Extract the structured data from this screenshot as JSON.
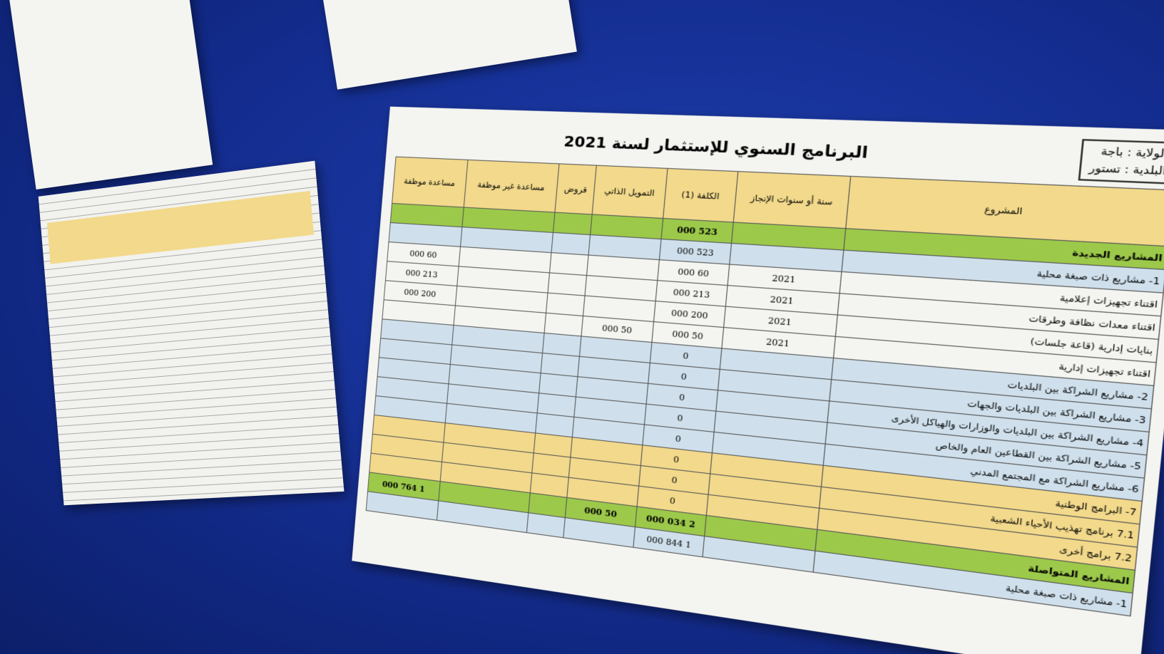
{
  "header": {
    "governorate": "الولاية : باجة",
    "municipality": "البلدية : تستور",
    "title": "البرنامج السنوي للإستثمار لسنة 2021"
  },
  "table": {
    "columns": [
      "المشروع",
      "سنة أو سنوات الإنجاز",
      "الكلفة (1)",
      "التمويل الذاتي",
      "قروض",
      "مساعدة غير موظفة",
      "مساعدة موظفة"
    ],
    "rows": [
      {
        "label": "المشاريع الجديدة",
        "cost": "523 000"
      },
      {
        "label": "1- مشاريع ذات صبغة محلية",
        "cost": "523 000"
      },
      {
        "label": "اقتناء تجهيزات إعلامية",
        "year": "2021",
        "cost": "60 000",
        "assigned_grant": "60 000"
      },
      {
        "label": "اقتناء معدات نظافة وطرقات",
        "year": "2021",
        "cost": "213 000",
        "assigned_grant": "213 000"
      },
      {
        "label": "بنايات إدارية (قاعة جلسات)",
        "year": "2021",
        "cost": "200 000",
        "assigned_grant": "200 000"
      },
      {
        "label": "اقتناء تجهيزات إدارية",
        "year": "2021",
        "cost": "50 000",
        "self_funding": "50 000"
      },
      {
        "label": "2- مشاريع الشراكة بين البلديات",
        "cost": "0"
      },
      {
        "label": "3- مشاريع الشراكة بين البلديات والجهات",
        "cost": "0"
      },
      {
        "label": "4- مشاريع الشراكة بين البلديات والوزارات والهياكل الأخرى",
        "cost": "0"
      },
      {
        "label": "5- مشاريع الشراكة بين القطاعين العام والخاص",
        "cost": "0"
      },
      {
        "label": "6- مشاريع الشراكة مع المجتمع المدني",
        "cost": "0"
      },
      {
        "label": "7- البرامج الوطنية",
        "cost": "0"
      },
      {
        "label": "7.1 برنامج تهذيب الأحياء الشعبية",
        "cost": "0"
      },
      {
        "label": "7.2 برامج أخرى",
        "cost": "0"
      },
      {
        "label": "المشاريع المتواصلة",
        "cost": "2 034 000",
        "self_funding": "50 000",
        "assigned_grant": "1 764 000"
      },
      {
        "label": "1- مشاريع ذات صبغة محلية",
        "cost": "1 844 000"
      }
    ]
  }
}
